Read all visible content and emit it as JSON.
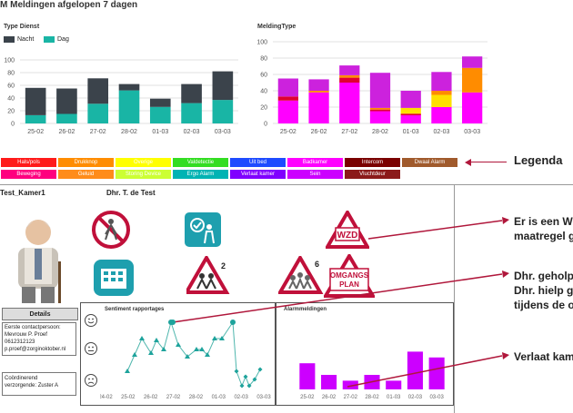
{
  "page": {
    "title": "M Meldingen afgelopen 7 dagen"
  },
  "colors": {
    "magenta": "#ff00ff",
    "teal": "#19b5a5",
    "dark": "#3b434b",
    "purple": "#cc00ff",
    "red_line": "#c0103a",
    "accent_arrow": "#b0173b"
  },
  "chart_data": [
    {
      "type": "bar",
      "title": "Type Dienst",
      "categories": [
        "25-02",
        "26-02",
        "27-02",
        "28-02",
        "01-03",
        "02-03",
        "03-03"
      ],
      "series": [
        {
          "name": "Nacht",
          "values": [
            43,
            40,
            40,
            10,
            13,
            30,
            45
          ]
        },
        {
          "name": "Dag",
          "values": [
            13,
            15,
            31,
            52,
            26,
            32,
            37
          ]
        }
      ],
      "ylim": [
        0,
        100
      ],
      "yticks": [
        0,
        20,
        40,
        60,
        80,
        100
      ],
      "stacked": true,
      "legend": "top-left"
    },
    {
      "type": "bar",
      "title": "MeldingType",
      "categories": [
        "25-02",
        "26-02",
        "27-02",
        "28-02",
        "01-03",
        "02-03",
        "03-03"
      ],
      "series": [
        {
          "name": "Badkamer",
          "values": [
            28,
            38,
            50,
            15,
            10,
            20,
            38
          ]
        },
        {
          "name": "Hals/pols",
          "values": [
            5,
            0,
            6,
            2,
            2,
            0,
            0
          ]
        },
        {
          "name": "Uit bed",
          "values": [
            0,
            0,
            0,
            0,
            0,
            0,
            0
          ]
        },
        {
          "name": "Overige",
          "values": [
            0,
            0,
            0,
            0,
            7,
            15,
            0
          ]
        },
        {
          "name": "Drukknop",
          "values": [
            0,
            2,
            3,
            2,
            0,
            5,
            30
          ]
        },
        {
          "name": "Sein",
          "values": [
            22,
            14,
            12,
            43,
            21,
            23,
            14
          ]
        }
      ],
      "ylim": [
        0,
        100
      ],
      "yticks": [
        0,
        20,
        40,
        60,
        80,
        100
      ],
      "stacked": true
    },
    {
      "type": "line",
      "title": "Sentiment rapportages",
      "categories": [
        "24-02",
        "25-02",
        "26-02",
        "27-02",
        "28-02",
        "01-03",
        "02-03",
        "03-03"
      ]
    },
    {
      "type": "bar",
      "title": "Alarmmeldingen",
      "categories": [
        "25-02",
        "26-02",
        "27-02",
        "28-02",
        "01-03",
        "02-03",
        "03-03"
      ],
      "values": [
        9,
        5,
        3,
        5,
        3,
        13,
        11
      ]
    }
  ],
  "legend": {
    "row1": [
      {
        "label": "Hals/pols",
        "color": "#ff1a1a"
      },
      {
        "label": "Drukknop",
        "color": "#ff8c00"
      },
      {
        "label": "Overige",
        "color": "#ffff00"
      },
      {
        "label": "Valdetectie",
        "color": "#33dd22"
      },
      {
        "label": "Uit bed",
        "color": "#1e4bff"
      },
      {
        "label": "Badkamer",
        "color": "#ff00ff"
      },
      {
        "label": "Intercom",
        "color": "#7a0000"
      },
      {
        "label": "Dwaal Alarm",
        "color": "#a05a2c"
      }
    ],
    "row2": [
      {
        "label": "Beweging",
        "color": "#ff007f"
      },
      {
        "label": "Geluid",
        "color": "#ff8c1a"
      },
      {
        "label": "Storing Device",
        "color": "#ccff33"
      },
      {
        "label": "Ergo Alarm",
        "color": "#00b3b3"
      },
      {
        "label": "Verlaat kamer",
        "color": "#8000ff"
      },
      {
        "label": "Sein",
        "color": "#cc00ff"
      },
      {
        "label": "Vluchtdeur",
        "color": "#8b1a1a"
      }
    ],
    "legend_label": "Legenda"
  },
  "resident": {
    "room": "Test_Kamer1",
    "name": "Dhr. T. de Test",
    "details_button": "Details",
    "contact_line1": "Eerste contactpersoon:",
    "contact_line2": "Mevrouw P. Proef",
    "contact_line3": "0612312123",
    "contact_line4": "p.proef@zorginoktober.nl",
    "coordinator_line1": "Coördinerend",
    "coordinator_line2": "verzorgende: Zuster A"
  },
  "icons": {
    "wzd_label": "WZD",
    "badge_2": "2",
    "badge_6": "6",
    "omgangs_line1": "OMGANGS",
    "omgangs_line2": "PLAN"
  },
  "callouts": {
    "c1_line1": "Er is een W",
    "c1_line2": "maatregel g",
    "c2_line1": "Dhr. geholp",
    "c2_line2": "Dhr. hielp g",
    "c2_line3": "tijdens de o",
    "c3_line1": "Verlaat kam"
  }
}
